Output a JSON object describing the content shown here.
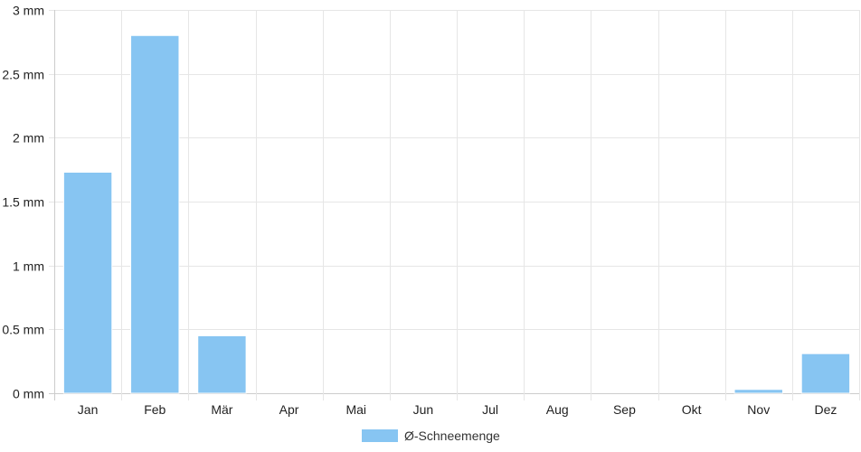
{
  "chart_data": {
    "type": "bar",
    "categories": [
      "Jan",
      "Feb",
      "Mär",
      "Apr",
      "Mai",
      "Jun",
      "Jul",
      "Aug",
      "Sep",
      "Okt",
      "Nov",
      "Dez"
    ],
    "series": [
      {
        "name": "Ø-Schneemenge",
        "values": [
          1.73,
          2.8,
          0.45,
          0,
          0,
          0,
          0,
          0,
          0,
          0,
          0.03,
          0.31
        ],
        "color": "#87c5f2"
      }
    ],
    "y_ticks": [
      "0 mm",
      "0.5 mm",
      "1 mm",
      "1.5 mm",
      "2 mm",
      "2.5 mm",
      "3 mm"
    ],
    "ylim": [
      0,
      3
    ],
    "y_step": 0.5,
    "unit": "mm",
    "grid": true,
    "legend_position": "bottom",
    "colors": {
      "grid": "#e6e6e6",
      "axis": "#cccccc",
      "text": "#222222"
    }
  }
}
